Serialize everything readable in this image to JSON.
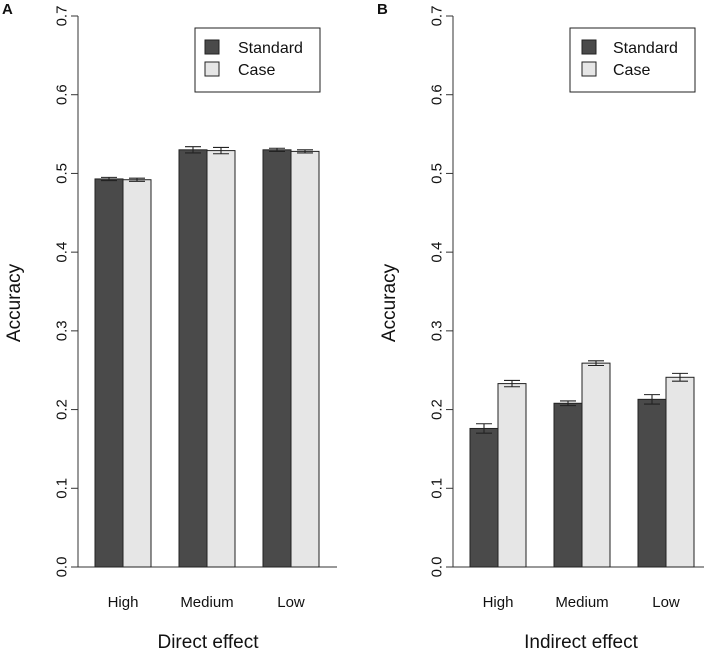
{
  "colors": {
    "standard": "#4a4a4a",
    "case": "#e6e6e6",
    "axis": "#333333"
  },
  "chart_data": [
    {
      "type": "bar",
      "panel": "A",
      "xlabel": "Direct effect",
      "ylabel": "Accuracy",
      "ylim": [
        0,
        0.7
      ],
      "yticks": [
        "0.0",
        "0.1",
        "0.2",
        "0.3",
        "0.4",
        "0.5",
        "0.6",
        "0.7"
      ],
      "categories": [
        "High",
        "Medium",
        "Low"
      ],
      "legend": {
        "position": "top-right",
        "entries": [
          "Standard",
          "Case"
        ]
      },
      "series": [
        {
          "name": "Standard",
          "values": [
            0.493,
            0.53,
            0.53
          ],
          "errors": [
            0.002,
            0.004,
            0.002
          ]
        },
        {
          "name": "Case",
          "values": [
            0.492,
            0.529,
            0.528
          ],
          "errors": [
            0.002,
            0.004,
            0.002
          ]
        }
      ]
    },
    {
      "type": "bar",
      "panel": "B",
      "xlabel": "Indirect effect",
      "ylabel": "Accuracy",
      "ylim": [
        0,
        0.7
      ],
      "yticks": [
        "0.0",
        "0.1",
        "0.2",
        "0.3",
        "0.4",
        "0.5",
        "0.6",
        "0.7"
      ],
      "categories": [
        "High",
        "Medium",
        "Low"
      ],
      "legend": {
        "position": "top-right",
        "entries": [
          "Standard",
          "Case"
        ]
      },
      "series": [
        {
          "name": "Standard",
          "values": [
            0.176,
            0.208,
            0.213
          ],
          "errors": [
            0.006,
            0.003,
            0.006
          ]
        },
        {
          "name": "Case",
          "values": [
            0.233,
            0.259,
            0.241
          ],
          "errors": [
            0.004,
            0.003,
            0.005
          ]
        }
      ]
    }
  ]
}
